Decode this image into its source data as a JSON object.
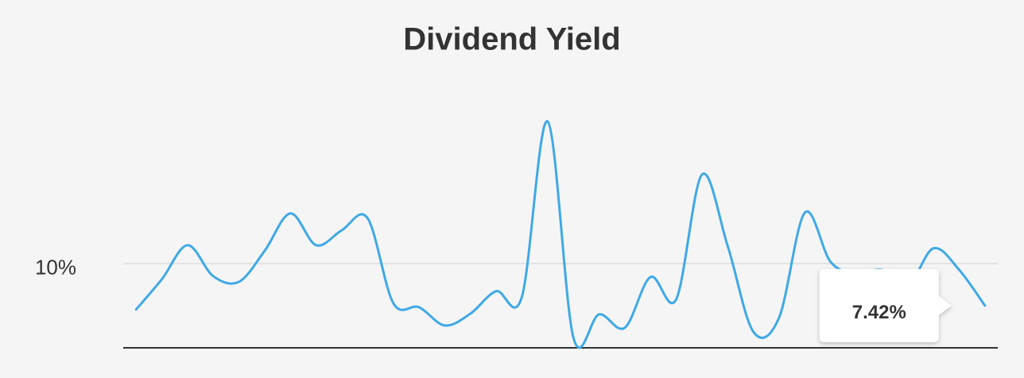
{
  "chart_data": {
    "type": "line",
    "title": "Dividend Yield",
    "categories": [
      null,
      null,
      null,
      null,
      null,
      null,
      null,
      null,
      null,
      null,
      null,
      null,
      null,
      null,
      null,
      null,
      null,
      null,
      null,
      null,
      null,
      null,
      null,
      null,
      null,
      null,
      null,
      null,
      null,
      null,
      null,
      null,
      null,
      null
    ],
    "values": [
      7.18,
      9.03,
      11.12,
      9.22,
      8.88,
      10.78,
      13.07,
      11.12,
      12.04,
      12.78,
      7.57,
      7.32,
      6.2,
      6.93,
      8.3,
      7.96,
      18.71,
      5.47,
      6.88,
      6.06,
      9.17,
      7.81,
      15.45,
      11.07,
      5.81,
      6.69,
      13.12,
      10.1,
      9.37,
      9.61,
      8.64,
      10.93,
      9.61,
      7.42
    ],
    "value_labels": [
      null,
      null,
      null,
      null,
      null,
      null,
      null,
      null,
      null,
      null,
      null,
      null,
      null,
      null,
      null,
      null,
      null,
      null,
      null,
      null,
      null,
      null,
      null,
      null,
      null,
      null,
      null,
      null,
      null,
      null,
      null,
      null,
      null,
      "7.42%"
    ],
    "color": "#3fa9e6",
    "ylim": [
      4.83,
      19.5
    ],
    "yticks": [
      {
        "value": 10,
        "label": "10%"
      }
    ],
    "grid": true
  }
}
